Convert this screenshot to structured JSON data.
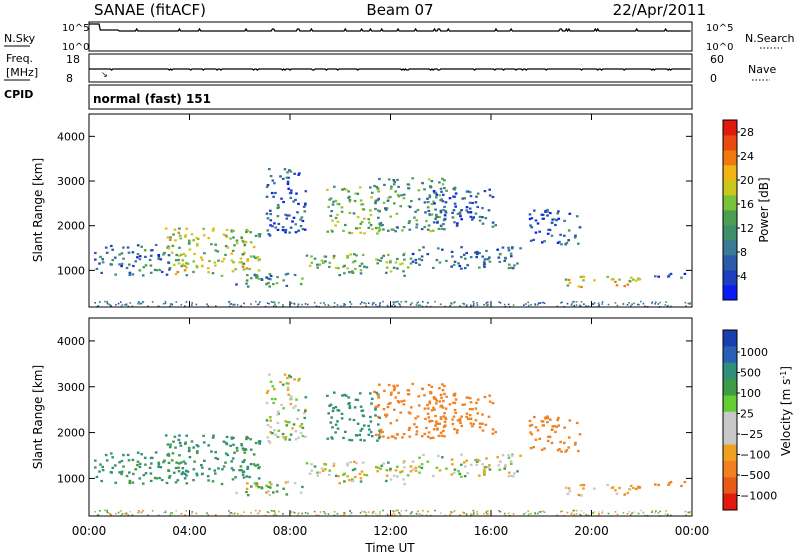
{
  "header": {
    "station": "SANAE (fitACF)",
    "beam": "Beam 07",
    "date": "22/Apr/2011"
  },
  "status_panel": {
    "nsky_label": "N.Sky",
    "freq_label_line1": "Freq.",
    "freq_label_line2": "[MHz]",
    "cpid_label": "CPID",
    "nsearch_label": "N.Search",
    "nave_label": "Nave",
    "nsky_ticks": [
      "10^5",
      "10^0"
    ],
    "nsearch_ticks": [
      "10^5",
      "10^0"
    ],
    "freq_ticks": [
      "18",
      "8"
    ],
    "nave_ticks": [
      "60",
      "0"
    ],
    "cpid_text": "normal (fast) 151"
  },
  "chart_data": [
    {
      "type": "heatmap",
      "name": "power-panel",
      "ylabel": "Slant Range [km]",
      "y_ticks": [
        "4000",
        "3000",
        "2000",
        "1000"
      ],
      "y_tick_values": [
        4000,
        3000,
        2000,
        1000
      ],
      "ylim": [
        180,
        4500
      ],
      "colorbar": {
        "label": "Power [dB]",
        "ticks": [
          "28",
          "24",
          "20",
          "16",
          "12",
          "8",
          "4"
        ],
        "range": [
          0,
          30
        ],
        "colors": [
          "#0a1cf5",
          "#1f3fbf",
          "#2c5aa8",
          "#3a7a96",
          "#3f8f6c",
          "#4b9e52",
          "#79c23a",
          "#c8c81c",
          "#f0b514",
          "#f07a10",
          "#e84a10",
          "#e01a0e"
        ]
      },
      "clusters": [
        {
          "t0": 0.2,
          "t1": 3.2,
          "r0": 900,
          "r1": 1600,
          "power": 8,
          "vel": 150
        },
        {
          "t0": 3.0,
          "t1": 6.8,
          "r0": 900,
          "r1": 2000,
          "power": 17,
          "vel": 150
        },
        {
          "t0": 5.8,
          "t1": 8.6,
          "r0": 650,
          "r1": 1000,
          "power": 10,
          "vel": 20
        },
        {
          "t0": 7.0,
          "t1": 8.6,
          "r0": 1800,
          "r1": 3300,
          "power": 6,
          "vel": 20
        },
        {
          "t0": 8.6,
          "t1": 12.8,
          "r0": 900,
          "r1": 1400,
          "power": 14,
          "vel": 0
        },
        {
          "t0": 9.4,
          "t1": 11.6,
          "r0": 1850,
          "r1": 2900,
          "power": 14,
          "vel": 300
        },
        {
          "t0": 11.3,
          "t1": 14.2,
          "r0": 1900,
          "r1": 3100,
          "power": 12,
          "vel": -300
        },
        {
          "t0": 12.8,
          "t1": 17.2,
          "r0": 1050,
          "r1": 1550,
          "power": 8,
          "vel": 0
        },
        {
          "t0": 13.5,
          "t1": 16.2,
          "r0": 2000,
          "r1": 2900,
          "power": 6,
          "vel": -200
        },
        {
          "t0": 17.5,
          "t1": 19.5,
          "r0": 1600,
          "r1": 2400,
          "power": 6,
          "vel": -300
        },
        {
          "t0": 18.9,
          "t1": 22.1,
          "r0": 650,
          "r1": 900,
          "power": 19,
          "vel": -60
        },
        {
          "t0": 22.4,
          "t1": 23.7,
          "r0": 800,
          "r1": 950,
          "power": 6,
          "vel": -300
        }
      ]
    },
    {
      "type": "heatmap",
      "name": "velocity-panel",
      "ylabel": "Slant Range [km]",
      "xlabel": "Time UT",
      "x_ticks": [
        "00:00",
        "04:00",
        "08:00",
        "12:00",
        "16:00",
        "20:00",
        "00:00"
      ],
      "x_tick_values": [
        0,
        4,
        8,
        12,
        16,
        20,
        24
      ],
      "xlim": [
        0,
        24
      ],
      "y_ticks": [
        "4000",
        "3000",
        "2000",
        "1000"
      ],
      "y_tick_values": [
        4000,
        3000,
        2000,
        1000
      ],
      "ylim": [
        180,
        4500
      ],
      "colorbar": {
        "label": "Velocity [m s",
        "label_exp": "-1",
        "label_tail": "]",
        "ticks": [
          "1000",
          "500",
          "100",
          "25",
          "−25",
          "−100",
          "−500",
          "−1000"
        ],
        "colors": [
          "#1c3fb0",
          "#2860b8",
          "#2f8f7a",
          "#3f9a4a",
          "#66cc33",
          "#c8c8c8",
          "#c8c8c8",
          "#f0a020",
          "#f08020",
          "#e85a18",
          "#e01a0e"
        ]
      }
    }
  ]
}
